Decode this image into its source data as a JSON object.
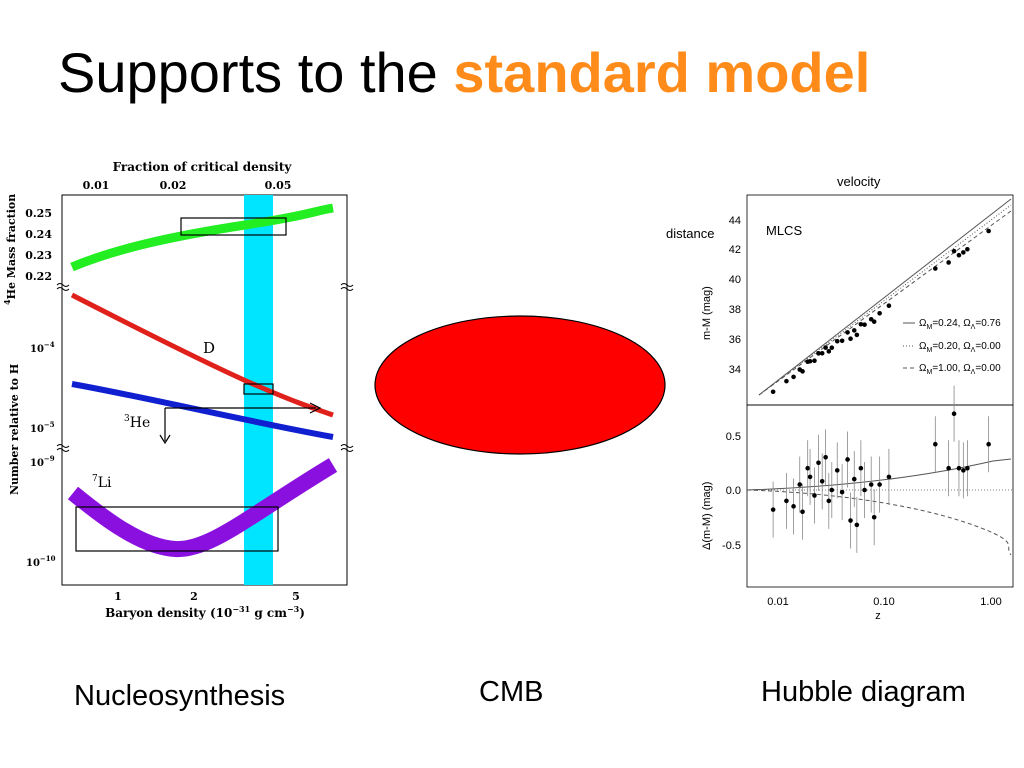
{
  "slide": {
    "title_plain": "Supports to the ",
    "title_accent": "standard model",
    "accent_color": "#ff8c1a",
    "captions": {
      "nucleosynthesis": "Nucleosynthesis",
      "cmb": "CMB",
      "hubble": "Hubble diagram"
    },
    "annotations": {
      "velocity": "velocity",
      "distance": "distance"
    },
    "cmb_shape_color": "#ff0000"
  },
  "chart_data": [
    {
      "type": "line",
      "top_axis_label": "Fraction of critical density",
      "top_ticks": [
        "0.01",
        "0.02",
        "0.05"
      ],
      "xlabel": "Baryon density (10",
      "xlabel_exp": "−31",
      "xlabel_unit": " g cm",
      "xlabel_unit_exp": "−3",
      "xlabel_close": ")",
      "x_ticks": [
        "1",
        "2",
        "5"
      ],
      "x_scale": "log",
      "panels": [
        {
          "ylabel_sup": "4",
          "ylabel": "He Mass fraction",
          "y_ticks": [
            "0.25",
            "0.24",
            "0.23",
            "0.22"
          ],
          "series": [
            {
              "name": "",
              "color": "#22ee22",
              "x": [
                0.6,
                1,
                2,
                3,
                5,
                6.5
              ],
              "y": [
                0.222,
                0.229,
                0.238,
                0.243,
                0.249,
                0.252
              ]
            }
          ]
        },
        {
          "ylabel": "Number relative to H",
          "y_ticks": [
            "10",
            "10"
          ],
          "y_tick_exps": [
            "−4",
            "−5"
          ],
          "series": [
            {
              "name": "D",
              "color": "#e0201a",
              "x": [
                0.6,
                1,
                2,
                3,
                5,
                6.5
              ],
              "y": [
                0.00038,
                0.00019,
                7.5e-05,
                4e-05,
                1.9e-05,
                1.3e-05
              ]
            },
            {
              "name": "He",
              "name_sup": "3",
              "color": "#1020d0",
              "x": [
                0.6,
                1,
                2,
                3,
                5,
                6.5
              ],
              "y": [
                3.2e-05,
                2.5e-05,
                1.7e-05,
                1.4e-05,
                1.1e-05,
                9.8e-06
              ]
            }
          ]
        },
        {
          "y_ticks": [
            "10",
            "10"
          ],
          "y_tick_exps": [
            "−9",
            "−10"
          ],
          "series": [
            {
              "name": "Li",
              "name_sup": "7",
              "color": "#8a10e0",
              "x": [
                0.6,
                1,
                1.5,
                1.8,
                2.5,
                3.5,
                5,
                6.5
              ],
              "y": [
                1.6e-10,
                9e-11,
                7e-11,
                1.3e-10,
                2.2e-10,
                3.5e-10,
                5.5e-10,
                8.5e-10
              ]
            }
          ]
        }
      ],
      "band": {
        "color": "#00e5ff",
        "x_range": [
          3.6,
          4.4
        ]
      }
    },
    {
      "type": "scatter",
      "top_ylabel": "m-M (mag)",
      "bottom_ylabel": "Δ(m-M) (mag)",
      "xlabel": "z",
      "x_scale": "log",
      "x_ticks": [
        "0.01",
        "0.10",
        "1.00"
      ],
      "top_y_ticks": [
        "44",
        "42",
        "40",
        "38",
        "36",
        "34"
      ],
      "bottom_y_ticks": [
        "0.5",
        "0.0",
        "-0.5"
      ],
      "method_label": "MLCS",
      "legend": [
        {
          "label": "Ω",
          "sub": "M",
          "rest": "=0.24, Ω",
          "sub2": "Λ",
          "rest2": "=0.76",
          "style": "solid"
        },
        {
          "label": "Ω",
          "sub": "M",
          "rest": "=0.20, Ω",
          "sub2": "Λ",
          "rest2": "=0.00",
          "style": "dotted"
        },
        {
          "label": "Ω",
          "sub": "M",
          "rest": "=1.00, Ω",
          "sub2": "Λ",
          "rest2": "=0.00",
          "style": "dashed"
        }
      ],
      "residual_points": [
        {
          "z": 0.009,
          "d": -0.18
        },
        {
          "z": 0.012,
          "d": -0.1
        },
        {
          "z": 0.014,
          "d": -0.15
        },
        {
          "z": 0.016,
          "d": 0.05
        },
        {
          "z": 0.017,
          "d": -0.2
        },
        {
          "z": 0.019,
          "d": 0.2
        },
        {
          "z": 0.02,
          "d": 0.12
        },
        {
          "z": 0.022,
          "d": -0.05
        },
        {
          "z": 0.024,
          "d": 0.25
        },
        {
          "z": 0.026,
          "d": 0.08
        },
        {
          "z": 0.028,
          "d": 0.3
        },
        {
          "z": 0.03,
          "d": -0.1
        },
        {
          "z": 0.032,
          "d": 0.0
        },
        {
          "z": 0.036,
          "d": 0.18
        },
        {
          "z": 0.04,
          "d": -0.02
        },
        {
          "z": 0.045,
          "d": 0.28
        },
        {
          "z": 0.048,
          "d": -0.28
        },
        {
          "z": 0.052,
          "d": 0.1
        },
        {
          "z": 0.055,
          "d": -0.32
        },
        {
          "z": 0.06,
          "d": 0.2
        },
        {
          "z": 0.065,
          "d": 0.0
        },
        {
          "z": 0.075,
          "d": 0.05
        },
        {
          "z": 0.08,
          "d": -0.25
        },
        {
          "z": 0.09,
          "d": 0.05
        },
        {
          "z": 0.11,
          "d": 0.12
        },
        {
          "z": 0.3,
          "d": 0.42
        },
        {
          "z": 0.4,
          "d": 0.2
        },
        {
          "z": 0.45,
          "d": 0.7
        },
        {
          "z": 0.5,
          "d": 0.2
        },
        {
          "z": 0.55,
          "d": 0.18
        },
        {
          "z": 0.6,
          "d": 0.2
        },
        {
          "z": 0.95,
          "d": 0.42
        }
      ]
    }
  ]
}
